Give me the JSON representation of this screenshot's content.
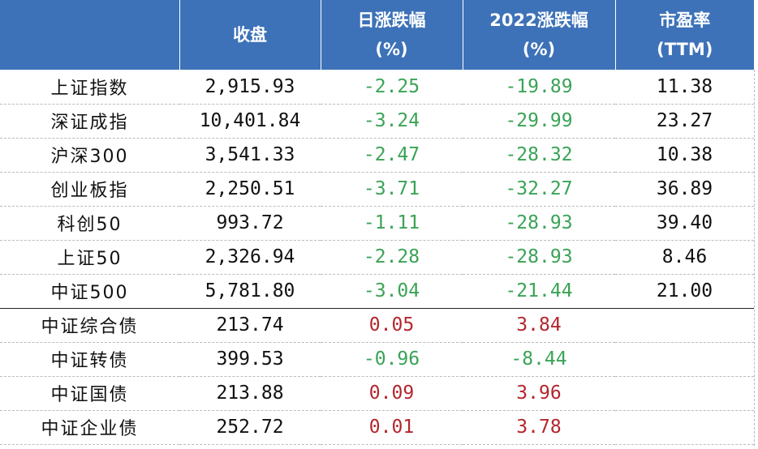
{
  "header": {
    "blank": "",
    "close": "收盘",
    "daily_change_line1": "日涨跌幅",
    "daily_change_line2": "(%)",
    "ytd_change_line1": "2022涨跌幅",
    "ytd_change_line2": "(%)",
    "pe_line1": "市盈率",
    "pe_line2": "(TTM)"
  },
  "rows": [
    {
      "name": "上证指数",
      "close": "2,915.93",
      "daily": "-2.25",
      "ytd": "-19.89",
      "pe": "11.38"
    },
    {
      "name": "深证成指",
      "close": "10,401.84",
      "daily": "-3.24",
      "ytd": "-29.99",
      "pe": "23.27"
    },
    {
      "name": "沪深300",
      "close": "3,541.33",
      "daily": "-2.47",
      "ytd": "-28.32",
      "pe": "10.38"
    },
    {
      "name": "创业板指",
      "close": "2,250.51",
      "daily": "-3.71",
      "ytd": "-32.27",
      "pe": "36.89"
    },
    {
      "name": "科创50",
      "close": "993.72",
      "daily": "-1.11",
      "ytd": "-28.93",
      "pe": "39.40"
    },
    {
      "name": "上证50",
      "close": "2,326.94",
      "daily": "-2.28",
      "ytd": "-28.93",
      "pe": "8.46"
    },
    {
      "name": "中证500",
      "close": "5,781.80",
      "daily": "-3.04",
      "ytd": "-21.44",
      "pe": "21.00"
    },
    {
      "name": "中证综合债",
      "close": "213.74",
      "daily": "0.05",
      "ytd": "3.84",
      "pe": ""
    },
    {
      "name": "中证转债",
      "close": "399.53",
      "daily": "-0.96",
      "ytd": "-8.44",
      "pe": ""
    },
    {
      "name": "中证国债",
      "close": "213.88",
      "daily": "0.09",
      "ytd": "3.96",
      "pe": ""
    },
    {
      "name": "中证企业债",
      "close": "252.72",
      "daily": "0.01",
      "ytd": "3.78",
      "pe": ""
    }
  ],
  "colors": {
    "header_bg": "#3d72b8",
    "negative": "#3aa356",
    "positive": "#b3262d"
  }
}
